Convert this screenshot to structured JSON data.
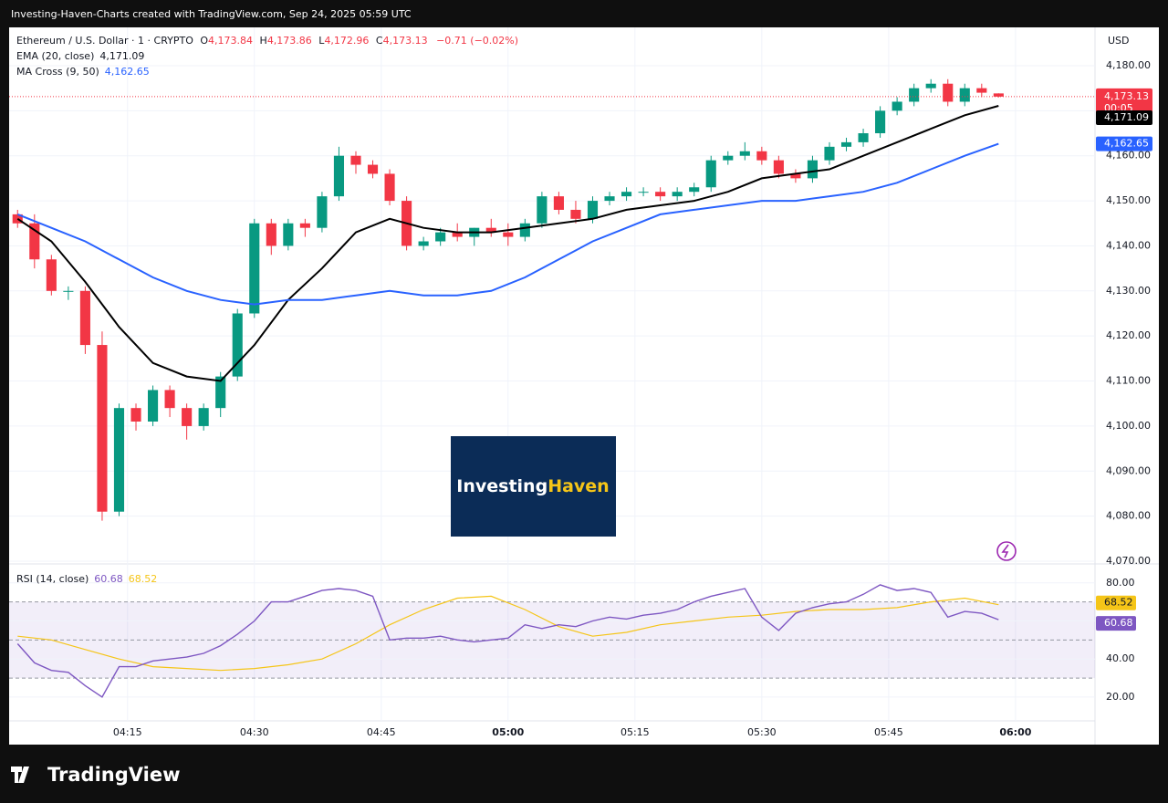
{
  "header": {
    "caption": "Investing-Haven-Charts created with TradingView.com, Sep 24, 2025 05:59 UTC"
  },
  "legend": {
    "symbol": "Ethereum / U.S. Dollar · 1 · CRYPTO",
    "o_key": "O",
    "o": "4,173.84",
    "h_key": "H",
    "h": "4,173.86",
    "l_key": "L",
    "l": "4,172.96",
    "c_key": "C",
    "c": "4,173.13",
    "change": "−0.71 (−0.02%)",
    "ema": "EMA (20, close)",
    "ema_value": "4,171.09",
    "ma": "MA Cross (9, 50)",
    "ma_value": "4,162.65",
    "rsi": "RSI (14, close)",
    "rsi_value": "60.68",
    "rsi_ma_value": "68.52"
  },
  "axis_labels": {
    "currency": "USD",
    "last_price": "4,173.13",
    "countdown": "00:05",
    "ema": "4,171.09",
    "ma": "4,162.65",
    "rsi": "60.68",
    "rsi_ma": "68.52"
  },
  "logo": {
    "part1": "Investing",
    "part2": "Haven"
  },
  "footer": {
    "brand": "TradingView"
  },
  "chart_data": [
    {
      "type": "candlestick",
      "xlim": [
        1,
        129.4
      ],
      "ylim": [
        4069.6,
        4188.5
      ],
      "xticks": [
        {
          "value": 15,
          "label": "04:15"
        },
        {
          "value": 30,
          "label": "04:30"
        },
        {
          "value": 45,
          "label": "04:45"
        },
        {
          "value": 60,
          "label": "05:00"
        },
        {
          "value": 75,
          "label": "05:15"
        },
        {
          "value": 90,
          "label": "05:30"
        },
        {
          "value": 105,
          "label": "05:45"
        },
        {
          "value": 120,
          "label": "06:00"
        }
      ],
      "yticks": [
        {
          "value": 4070,
          "label": "4,070.00"
        },
        {
          "value": 4080,
          "label": "4,080.00"
        },
        {
          "value": 4090,
          "label": "4,090.00"
        },
        {
          "value": 4100,
          "label": "4,100.00"
        },
        {
          "value": 4110,
          "label": "4,110.00"
        },
        {
          "value": 4120,
          "label": "4,120.00"
        },
        {
          "value": 4130,
          "label": "4,130.00"
        },
        {
          "value": 4140,
          "label": "4,140.00"
        },
        {
          "value": 4150,
          "label": "4,150.00"
        },
        {
          "value": 4160,
          "label": "4,160.00"
        },
        {
          "value": 4170,
          "label": "4,170.00"
        },
        {
          "value": 4180,
          "label": "4,180.00"
        }
      ],
      "grid": true,
      "up_color": "#089981",
      "down_color": "#f23645",
      "candles": {
        "t": [
          2,
          4,
          6,
          8,
          10,
          12,
          14,
          16,
          18,
          20,
          22,
          24,
          26,
          28,
          30,
          32,
          34,
          36,
          38,
          40,
          42,
          44,
          46,
          48,
          50,
          52,
          54,
          56,
          58,
          60,
          62,
          64,
          66,
          68,
          70,
          72,
          74,
          76,
          78,
          80,
          82,
          84,
          86,
          88,
          90,
          92,
          94,
          96,
          98,
          100,
          102,
          104,
          106,
          108,
          110,
          112,
          114,
          116,
          118
        ],
        "open": [
          4147,
          4145,
          4137,
          4130,
          4130,
          4118,
          4081,
          4104,
          4101,
          4108,
          4104,
          4100,
          4104,
          4111,
          4125,
          4145,
          4140,
          4145,
          4144,
          4151,
          4160,
          4158,
          4156,
          4150,
          4140,
          4141,
          4143,
          4142,
          4144,
          4143,
          4142,
          4145,
          4151,
          4148,
          4146,
          4150,
          4151,
          4152,
          4152,
          4151,
          4152,
          4153,
          4159,
          4160,
          4161,
          4159,
          4156,
          4155,
          4159,
          4162,
          4163,
          4165,
          4170,
          4172,
          4175,
          4176,
          4172,
          4175,
          4173.84
        ],
        "high": [
          4148,
          4147,
          4138,
          4131,
          4131,
          4121,
          4105,
          4105,
          4109,
          4109,
          4105,
          4105,
          4112,
          4126,
          4146,
          4146,
          4146,
          4146,
          4152,
          4162,
          4161,
          4159,
          4157,
          4151,
          4142,
          4144,
          4145,
          4144,
          4146,
          4145,
          4146,
          4152,
          4152,
          4150,
          4151,
          4152,
          4153,
          4153,
          4153,
          4153,
          4154,
          4160,
          4161,
          4163,
          4162,
          4160,
          4157,
          4160,
          4163,
          4164,
          4166,
          4171,
          4173,
          4176,
          4177,
          4177,
          4176,
          4176,
          4173.86
        ],
        "low": [
          4144,
          4135,
          4129,
          4128,
          4116,
          4079,
          4080,
          4099,
          4100,
          4102,
          4097,
          4099,
          4102,
          4110,
          4124,
          4138,
          4139,
          4142,
          4143,
          4150,
          4156,
          4155,
          4149,
          4139,
          4139,
          4140,
          4141,
          4140,
          4142,
          4140,
          4141,
          4144,
          4147,
          4145,
          4145,
          4149,
          4150,
          4151,
          4150,
          4150,
          4151,
          4152,
          4158,
          4159,
          4158,
          4155,
          4154,
          4154,
          4158,
          4161,
          4162,
          4164,
          4169,
          4171,
          4174,
          4171,
          4171,
          4173,
          4172.96
        ],
        "close": [
          4145,
          4137,
          4130,
          4130,
          4118,
          4081,
          4104,
          4101,
          4108,
          4104,
          4100,
          4104,
          4111,
          4125,
          4145,
          4140,
          4145,
          4144,
          4151,
          4160,
          4158,
          4156,
          4150,
          4140,
          4141,
          4143,
          4142,
          4144,
          4143,
          4142,
          4145,
          4151,
          4148,
          4146,
          4150,
          4151,
          4152,
          4152,
          4151,
          4152,
          4153,
          4159,
          4160,
          4161,
          4159,
          4156,
          4155,
          4159,
          4162,
          4163,
          4165,
          4170,
          4172,
          4175,
          4176,
          4172,
          4175,
          4174,
          4173.13
        ]
      },
      "series": [
        {
          "name": "EMA (20, close)",
          "color": "#000000",
          "x": [
            2,
            6,
            10,
            14,
            18,
            22,
            26,
            30,
            34,
            38,
            42,
            46,
            50,
            54,
            58,
            62,
            66,
            70,
            74,
            78,
            82,
            86,
            90,
            94,
            98,
            102,
            106,
            110,
            114,
            118
          ],
          "values": [
            4146,
            4141,
            4132,
            4122,
            4114,
            4111,
            4110,
            4118,
            4128,
            4135,
            4143,
            4146,
            4144,
            4143,
            4143,
            4144,
            4145,
            4146,
            4148,
            4149,
            4150,
            4152,
            4155,
            4156,
            4157,
            4160,
            4163,
            4166,
            4169,
            4171.09
          ]
        },
        {
          "name": "MA Cross (9, 50)",
          "color": "#2962ff",
          "x": [
            2,
            6,
            10,
            14,
            18,
            22,
            26,
            30,
            34,
            38,
            42,
            46,
            50,
            54,
            58,
            62,
            66,
            70,
            74,
            78,
            82,
            86,
            90,
            94,
            98,
            102,
            106,
            110,
            114,
            118
          ],
          "values": [
            4147,
            4144,
            4141,
            4137,
            4133,
            4130,
            4128,
            4127,
            4128,
            4128,
            4129,
            4130,
            4129,
            4129,
            4130,
            4133,
            4137,
            4141,
            4144,
            4147,
            4148,
            4149,
            4150,
            4150,
            4151,
            4152,
            4154,
            4157,
            4160,
            4162.65
          ]
        }
      ]
    },
    {
      "type": "line",
      "xlim": [
        1,
        129.4
      ],
      "ylim": [
        7.5,
        89
      ],
      "yticks": [
        {
          "value": 20,
          "label": "20.00"
        },
        {
          "value": 40,
          "label": "40.00"
        },
        {
          "value": 60,
          "label": "60.00"
        },
        {
          "value": 80,
          "label": "80.00"
        }
      ],
      "bands": [
        30,
        50,
        70
      ],
      "series": [
        {
          "name": "RSI",
          "color": "#7e57c2",
          "x": [
            2,
            4,
            6,
            8,
            10,
            12,
            14,
            16,
            18,
            20,
            22,
            24,
            26,
            28,
            30,
            32,
            34,
            36,
            38,
            40,
            42,
            44,
            46,
            48,
            50,
            52,
            54,
            56,
            58,
            60,
            62,
            64,
            66,
            68,
            70,
            72,
            74,
            76,
            78,
            80,
            82,
            84,
            86,
            88,
            90,
            92,
            94,
            96,
            98,
            100,
            102,
            104,
            106,
            108,
            110,
            112,
            114,
            116,
            118
          ],
          "values": [
            48,
            38,
            34,
            33,
            26,
            20,
            36,
            36,
            39,
            40,
            41,
            43,
            47,
            53,
            60,
            70,
            70,
            73,
            76,
            77,
            76,
            73,
            50,
            51,
            51,
            52,
            50,
            49,
            50,
            51,
            58,
            56,
            58,
            57,
            60,
            62,
            61,
            63,
            64,
            66,
            70,
            73,
            75,
            77,
            62,
            55,
            64,
            67,
            69,
            70,
            74,
            79,
            76,
            77,
            75,
            62,
            65,
            64,
            60.68
          ]
        },
        {
          "name": "RSI MA",
          "color": "#f5c518",
          "x": [
            2,
            6,
            10,
            14,
            18,
            22,
            26,
            30,
            34,
            38,
            42,
            46,
            50,
            54,
            58,
            62,
            66,
            70,
            74,
            78,
            82,
            86,
            90,
            94,
            98,
            102,
            106,
            110,
            114,
            118
          ],
          "values": [
            52,
            50,
            45,
            40,
            36,
            35,
            34,
            35,
            37,
            40,
            48,
            58,
            66,
            72,
            73,
            66,
            57,
            52,
            54,
            58,
            60,
            62,
            63,
            65,
            66,
            66,
            67,
            70,
            72,
            68.52
          ]
        }
      ]
    }
  ]
}
